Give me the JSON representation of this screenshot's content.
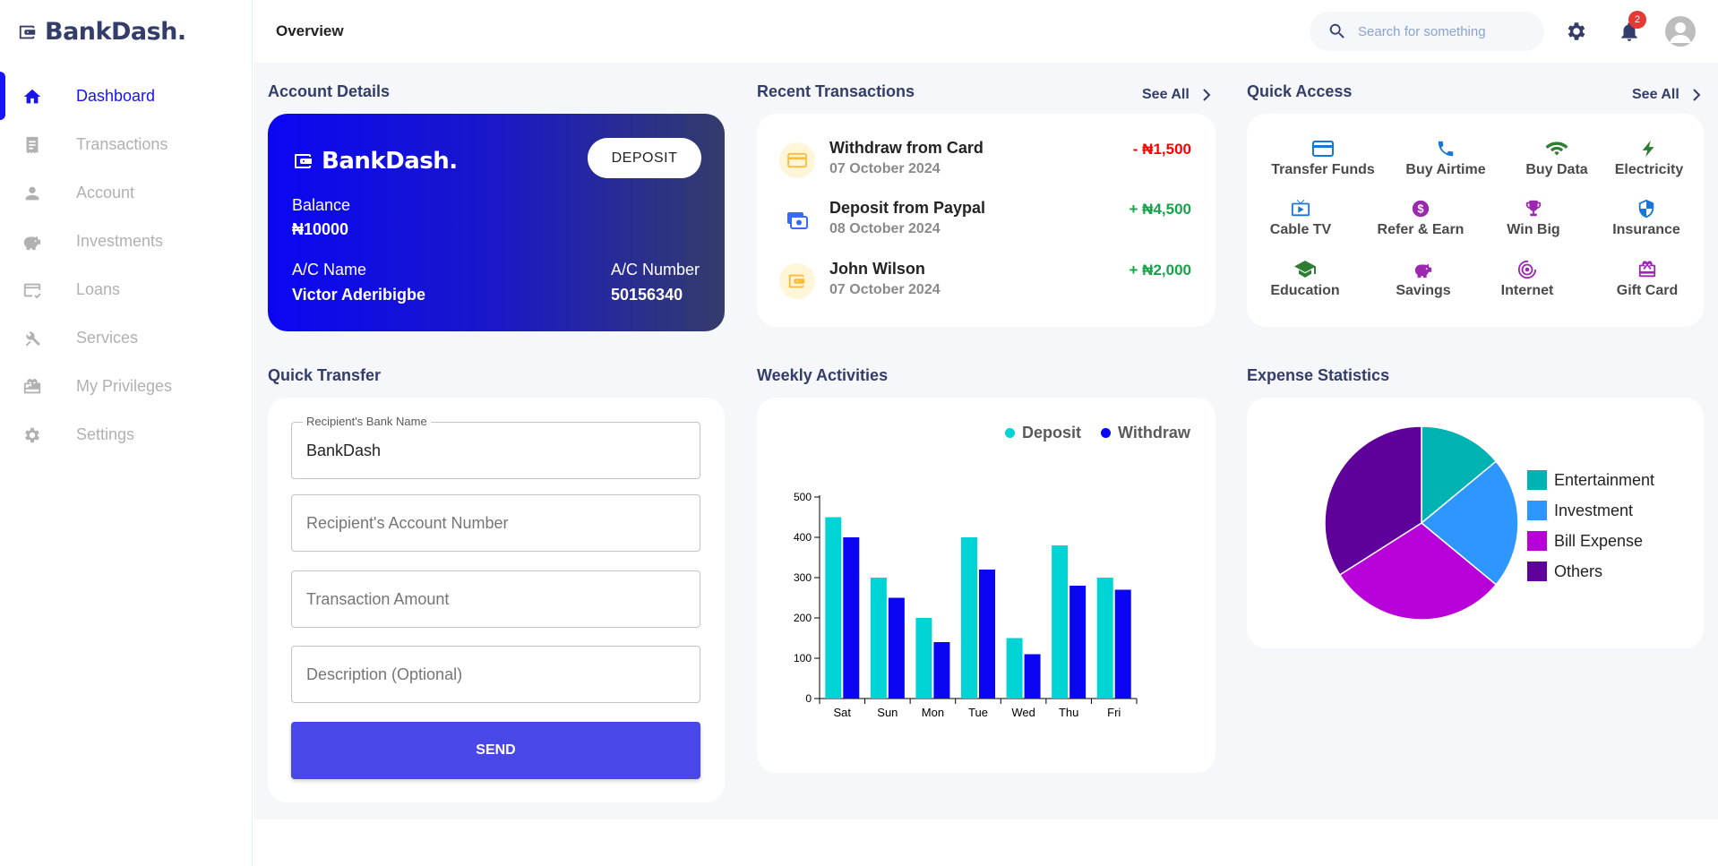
{
  "app": {
    "name": "BankDash."
  },
  "sidebar": {
    "items": [
      {
        "label": "Dashboard",
        "icon": "home-icon",
        "active": true
      },
      {
        "label": "Transactions",
        "icon": "receipt-icon"
      },
      {
        "label": "Account",
        "icon": "person-icon"
      },
      {
        "label": "Investments",
        "icon": "piggy-bank-icon"
      },
      {
        "label": "Loans",
        "icon": "credit-card-check-icon"
      },
      {
        "label": "Services",
        "icon": "tools-icon"
      },
      {
        "label": "My Privileges",
        "icon": "gift-box-icon"
      },
      {
        "label": "Settings",
        "icon": "gear-icon"
      }
    ]
  },
  "header": {
    "title": "Overview",
    "search_placeholder": "Search for something",
    "notification_count": "2"
  },
  "account": {
    "title": "Account Details",
    "brand": "BankDash.",
    "deposit_label": "DEPOSIT",
    "balance_label": "Balance",
    "balance_value": "₦10000",
    "name_label": "A/C Name",
    "name_value": "Victor Aderibigbe",
    "number_label": "A/C Number",
    "number_value": "50156340"
  },
  "transactions": {
    "title": "Recent Transactions",
    "see_all": "See All",
    "items": [
      {
        "title": "Withdraw from Card",
        "date": "07 October 2024",
        "amount": "- ₦1,500",
        "type": "debit",
        "icon": "card-icon"
      },
      {
        "title": "Deposit from Paypal",
        "date": "08 October 2024",
        "amount": "+ ₦4,500",
        "type": "credit",
        "icon": "paypal-icon"
      },
      {
        "title": "John Wilson",
        "date": "07 October 2024",
        "amount": "+ ₦2,000",
        "type": "credit",
        "icon": "wallet-icon"
      }
    ]
  },
  "quick_access": {
    "title": "Quick Access",
    "see_all": "See All",
    "items": [
      {
        "label": "Transfer Funds",
        "icon": "credit-card-icon",
        "color": "#1976d2"
      },
      {
        "label": "Buy Airtime",
        "icon": "phone-icon",
        "color": "#1976d2"
      },
      {
        "label": "Buy Data",
        "icon": "wifi-icon",
        "color": "#2e7d32"
      },
      {
        "label": "Electricity",
        "icon": "bolt-icon",
        "color": "#2e7d32"
      },
      {
        "label": "Cable TV",
        "icon": "tv-icon",
        "color": "#1976d2"
      },
      {
        "label": "Refer & Earn",
        "icon": "dollar-coin-icon",
        "color": "#9c27b0"
      },
      {
        "label": "Win Big",
        "icon": "trophy-icon",
        "color": "#9c27b0"
      },
      {
        "label": "Insurance",
        "icon": "shield-icon",
        "color": "#1976d2"
      },
      {
        "label": "Education",
        "icon": "graduation-cap-icon",
        "color": "#2e7d32"
      },
      {
        "label": "Savings",
        "icon": "piggy-bank-icon",
        "color": "#9c27b0"
      },
      {
        "label": "Internet",
        "icon": "broadcast-icon",
        "color": "#9c27b0"
      },
      {
        "label": "Gift Card",
        "icon": "gift-card-icon",
        "color": "#9c27b0"
      }
    ]
  },
  "quick_transfer": {
    "title": "Quick Transfer",
    "bank_label": "Recipient's Bank Name",
    "bank_value": "BankDash",
    "account_placeholder": "Recipient's Account Number",
    "amount_placeholder": "Transaction Amount",
    "description_placeholder": "Description (Optional)",
    "send_label": "SEND"
  },
  "weekly": {
    "title": "Weekly Activities"
  },
  "expenses": {
    "title": "Expense Statistics"
  },
  "chart_data": [
    {
      "type": "bar",
      "title": "",
      "categories": [
        "Sat",
        "Sun",
        "Mon",
        "Tue",
        "Wed",
        "Thu",
        "Fri"
      ],
      "series": [
        {
          "name": "Deposit",
          "color": "#00d4d4",
          "values": [
            450,
            300,
            200,
            400,
            150,
            380,
            300
          ]
        },
        {
          "name": "Withdraw",
          "color": "#0a06f4",
          "values": [
            400,
            250,
            140,
            320,
            110,
            280,
            270
          ]
        }
      ],
      "ylim": [
        0,
        500
      ],
      "yticks": [
        0,
        100,
        200,
        300,
        400,
        500
      ],
      "legend": "top-right",
      "grid": false
    },
    {
      "type": "pie",
      "title": "",
      "labels": [
        "Entertainment",
        "Investment",
        "Bill Expense",
        "Others"
      ],
      "values": [
        14,
        22,
        30,
        34
      ],
      "colors": [
        "#00b3b3",
        "#2e96ff",
        "#b800d8",
        "#60009b"
      ],
      "legend": "right"
    }
  ]
}
